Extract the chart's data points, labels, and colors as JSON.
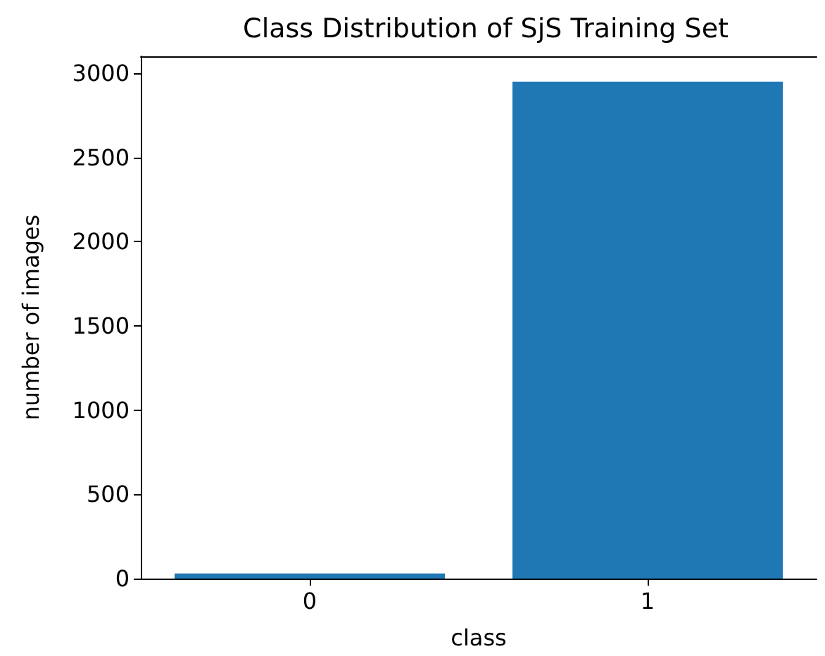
{
  "chart_data": {
    "type": "bar",
    "title": "Class Distribution of SjS Training Set",
    "xlabel": "class",
    "ylabel": "number of images",
    "categories": [
      "0",
      "1"
    ],
    "values": [
      30,
      2950
    ],
    "color": "#1f77b4",
    "ylim": [
      0,
      3100
    ],
    "yticks": [
      0,
      500,
      1000,
      1500,
      2000,
      2500,
      3000
    ],
    "grid": false
  }
}
